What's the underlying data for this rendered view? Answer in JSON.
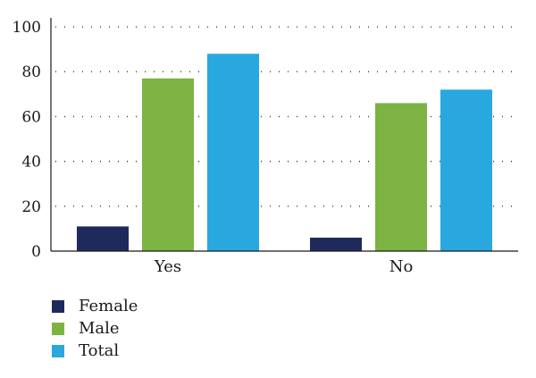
{
  "chart_data": {
    "type": "bar",
    "categories": [
      "Yes",
      "No"
    ],
    "series": [
      {
        "name": "Female",
        "values": [
          11,
          6
        ],
        "color": "#1f2a5c"
      },
      {
        "name": "Male",
        "values": [
          77,
          66
        ],
        "color": "#7cb342"
      },
      {
        "name": "Total",
        "values": [
          88,
          72
        ],
        "color": "#29a8e0"
      }
    ],
    "yticks": [
      0,
      20,
      40,
      60,
      80,
      100
    ],
    "ylim": [
      0,
      104
    ],
    "grid": true,
    "legend_position": "bottom-left",
    "title": "",
    "xlabel": "",
    "ylabel": ""
  }
}
